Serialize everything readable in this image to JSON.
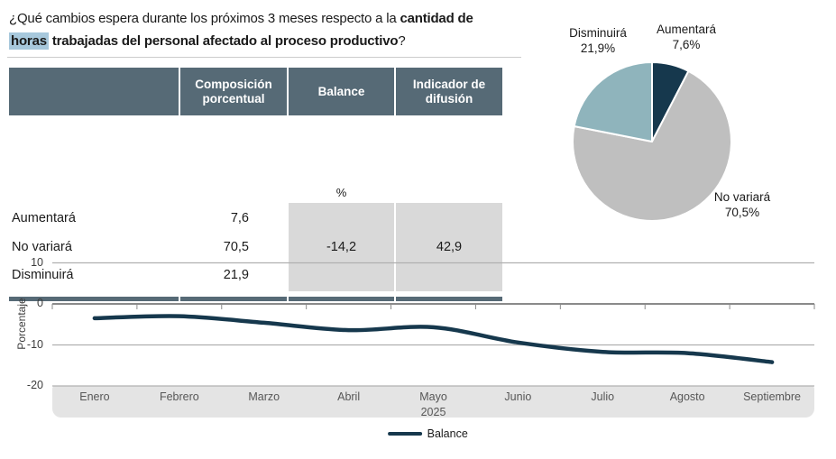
{
  "title": {
    "regular": "¿Qué cambios espera durante los próximos 3 meses respecto a la ",
    "bold_lead": "cantidad de",
    "highlighted_word": "horas",
    "bold_rest": " trabajadas del personal afectado al proceso productivo",
    "question_mark": "?"
  },
  "table": {
    "headers": [
      "Composición porcentual",
      "Balance",
      "Indicador de difusión"
    ],
    "percent_symbol": "%",
    "rows": [
      {
        "label": "Aumentará",
        "value": "7,6"
      },
      {
        "label": "No variará",
        "value": "70,5"
      },
      {
        "label": "Disminuirá",
        "value": "21,9"
      }
    ],
    "balance_value": "-14,2",
    "diffusion_value": "42,9"
  },
  "pie_labels": [
    {
      "name": "Disminuirá",
      "pct": "21,9%"
    },
    {
      "name": "Aumentará",
      "pct": "7,6%"
    },
    {
      "name": "No variará",
      "pct": "70,5%"
    }
  ],
  "legend": {
    "label": "Balance"
  },
  "colors": {
    "header_bg": "#566a76",
    "grey_cell": "#d9d9d9",
    "navy": "#16384d",
    "pie_gray": "#bfbfbf",
    "pie_teal": "#8fb4bc",
    "highlight": "#a7c8dc",
    "band_bg": "#e4e4e4",
    "gridline": "#b0b0b0",
    "zero_line": "#8a8a8a"
  },
  "chart_data": [
    {
      "type": "pie",
      "labels": [
        "Aumentará",
        "No variará",
        "Disminuirá"
      ],
      "values": [
        7.6,
        70.5,
        21.9
      ],
      "colors": [
        "#16384d",
        "#bfbfbf",
        "#8fb4bc"
      ],
      "start_angle_deg": 0,
      "direction": "clockwise",
      "legend_position": "labels-outside"
    },
    {
      "type": "line",
      "title": "",
      "xlabel": "",
      "ylabel": "Porcentaje",
      "categories": [
        "Enero",
        "Febrero",
        "Marzo",
        "Abril",
        "Mayo",
        "Junio",
        "Julio",
        "Agosto",
        "Septiembre"
      ],
      "x_axis_year": "2025",
      "series": [
        {
          "name": "Balance",
          "values": [
            -3.5,
            -3.0,
            -4.6,
            -6.4,
            -5.7,
            -9.4,
            -11.7,
            -12.0,
            -14.2
          ]
        }
      ],
      "ylim": [
        -20,
        10
      ],
      "yticks": [
        10,
        0,
        -10,
        -20
      ],
      "grid": true,
      "line_color": "#16384d",
      "legend_position": "bottom"
    }
  ]
}
